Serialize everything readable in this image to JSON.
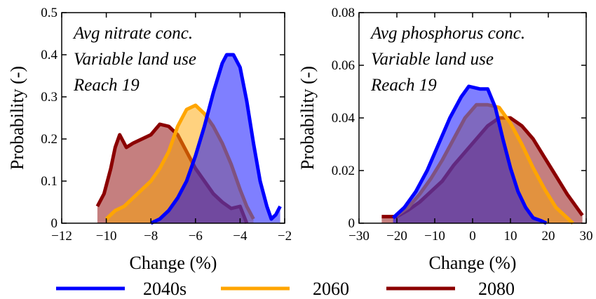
{
  "chart_data": [
    {
      "type": "area",
      "panel": "left",
      "annotation": [
        "Avg nitrate conc.",
        "Variable land use",
        "Reach 19"
      ],
      "xlabel": "Change (%)",
      "ylabel": "Probability (-)",
      "xlim": [
        -12,
        -2
      ],
      "ylim": [
        0,
        0.5
      ],
      "xticks": [
        -12,
        -10,
        -8,
        -6,
        -4,
        -2
      ],
      "yticks": [
        0,
        0.1,
        0.2,
        0.3,
        0.4,
        0.5
      ],
      "series": [
        {
          "name": "2080",
          "color": "#8b0000",
          "fill": "rgba(139,0,0,0.5)",
          "points": [
            [
              -10.4,
              0.04
            ],
            [
              -10.1,
              0.07
            ],
            [
              -9.8,
              0.13
            ],
            [
              -9.6,
              0.18
            ],
            [
              -9.4,
              0.21
            ],
            [
              -9.1,
              0.18
            ],
            [
              -8.8,
              0.19
            ],
            [
              -8.4,
              0.2
            ],
            [
              -8.0,
              0.21
            ],
            [
              -7.6,
              0.235
            ],
            [
              -7.2,
              0.23
            ],
            [
              -6.8,
              0.21
            ],
            [
              -6.4,
              0.17
            ],
            [
              -6.0,
              0.13
            ],
            [
              -5.6,
              0.1
            ],
            [
              -5.2,
              0.07
            ],
            [
              -4.8,
              0.05
            ],
            [
              -4.4,
              0.035
            ],
            [
              -4.0,
              0.04
            ],
            [
              -3.7,
              0.0
            ]
          ]
        },
        {
          "name": "2060",
          "color": "#ffa500",
          "fill": "rgba(255,165,0,0.5)",
          "points": [
            [
              -10.0,
              0.01
            ],
            [
              -9.6,
              0.03
            ],
            [
              -9.2,
              0.04
            ],
            [
              -8.8,
              0.06
            ],
            [
              -8.4,
              0.08
            ],
            [
              -8.0,
              0.1
            ],
            [
              -7.6,
              0.13
            ],
            [
              -7.2,
              0.17
            ],
            [
              -6.8,
              0.23
            ],
            [
              -6.4,
              0.27
            ],
            [
              -6.0,
              0.28
            ],
            [
              -5.6,
              0.26
            ],
            [
              -5.2,
              0.23
            ],
            [
              -4.8,
              0.19
            ],
            [
              -4.4,
              0.14
            ],
            [
              -4.0,
              0.08
            ],
            [
              -3.7,
              0.04
            ],
            [
              -3.4,
              0.01
            ]
          ]
        },
        {
          "name": "2040s",
          "color": "#0000ff",
          "fill": "rgba(0,0,255,0.5)",
          "points": [
            [
              -8.0,
              0.0
            ],
            [
              -7.6,
              0.01
            ],
            [
              -7.2,
              0.03
            ],
            [
              -6.8,
              0.06
            ],
            [
              -6.4,
              0.1
            ],
            [
              -6.0,
              0.16
            ],
            [
              -5.6,
              0.23
            ],
            [
              -5.2,
              0.31
            ],
            [
              -4.8,
              0.38
            ],
            [
              -4.6,
              0.4
            ],
            [
              -4.3,
              0.4
            ],
            [
              -4.0,
              0.37
            ],
            [
              -3.7,
              0.29
            ],
            [
              -3.4,
              0.19
            ],
            [
              -3.1,
              0.1
            ],
            [
              -2.8,
              0.04
            ],
            [
              -2.6,
              0.01
            ],
            [
              -2.4,
              0.02
            ],
            [
              -2.2,
              0.04
            ]
          ]
        }
      ]
    },
    {
      "type": "area",
      "panel": "right",
      "annotation": [
        "Avg phosphorus conc.",
        "Variable land use",
        "Reach 19"
      ],
      "xlabel": "Change (%)",
      "ylabel": "Probability (-)",
      "xlim": [
        -30,
        30
      ],
      "ylim": [
        0,
        0.08
      ],
      "xticks": [
        -30,
        -20,
        -10,
        0,
        10,
        20,
        30
      ],
      "yticks": [
        0,
        0.02,
        0.04,
        0.06,
        0.08
      ],
      "series": [
        {
          "name": "2080",
          "color": "#8b0000",
          "fill": "rgba(139,0,0,0.5)",
          "points": [
            [
              -24,
              0.0025
            ],
            [
              -20,
              0.0025
            ],
            [
              -17,
              0.005
            ],
            [
              -14,
              0.008
            ],
            [
              -11,
              0.012
            ],
            [
              -8,
              0.016
            ],
            [
              -5,
              0.022
            ],
            [
              -2,
              0.027
            ],
            [
              1,
              0.032
            ],
            [
              4,
              0.037
            ],
            [
              7,
              0.04
            ],
            [
              10,
              0.04
            ],
            [
              13,
              0.037
            ],
            [
              16,
              0.032
            ],
            [
              19,
              0.025
            ],
            [
              22,
              0.018
            ],
            [
              25,
              0.011
            ],
            [
              28,
              0.005
            ],
            [
              29,
              0.003
            ]
          ]
        },
        {
          "name": "2060",
          "color": "#ffa500",
          "fill": "rgba(255,165,0,0.5)",
          "points": [
            [
              -20,
              0.003
            ],
            [
              -17,
              0.006
            ],
            [
              -14,
              0.011
            ],
            [
              -11,
              0.017
            ],
            [
              -8,
              0.024
            ],
            [
              -5,
              0.032
            ],
            [
              -2,
              0.04
            ],
            [
              1,
              0.045
            ],
            [
              4,
              0.045
            ],
            [
              7,
              0.044
            ],
            [
              10,
              0.038
            ],
            [
              13,
              0.03
            ],
            [
              16,
              0.021
            ],
            [
              19,
              0.013
            ],
            [
              22,
              0.006
            ],
            [
              25,
              0.002
            ],
            [
              26.5,
              0.0
            ]
          ]
        },
        {
          "name": "2040s",
          "color": "#0000ff",
          "fill": "rgba(0,0,255,0.5)",
          "points": [
            [
              -21,
              0.002
            ],
            [
              -18,
              0.006
            ],
            [
              -15,
              0.012
            ],
            [
              -12,
              0.02
            ],
            [
              -9,
              0.03
            ],
            [
              -6,
              0.04
            ],
            [
              -3,
              0.048
            ],
            [
              -1,
              0.052
            ],
            [
              2,
              0.051
            ],
            [
              4,
              0.051
            ],
            [
              6,
              0.044
            ],
            [
              8,
              0.032
            ],
            [
              10,
              0.021
            ],
            [
              12,
              0.012
            ],
            [
              14,
              0.006
            ],
            [
              16,
              0.002
            ],
            [
              18,
              0.001
            ],
            [
              19.5,
              0.0
            ]
          ]
        }
      ]
    }
  ],
  "legend": [
    {
      "label": "2040s",
      "color": "#0000ff"
    },
    {
      "label": "2060",
      "color": "#ffa500"
    },
    {
      "label": "2080",
      "color": "#8b0000"
    }
  ]
}
